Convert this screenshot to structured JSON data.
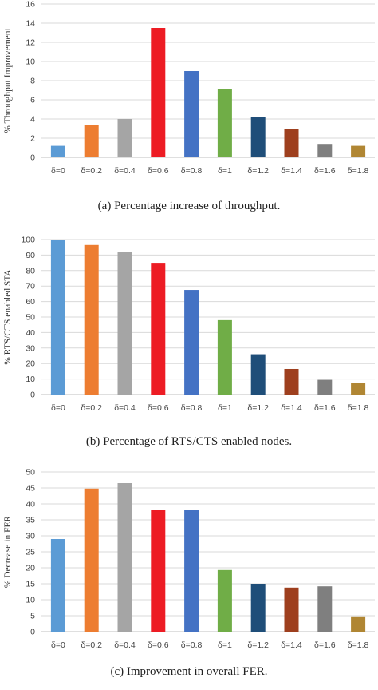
{
  "chart_data": [
    {
      "type": "bar",
      "id": "a",
      "categories": [
        "δ=0",
        "δ=0.2",
        "δ=0.4",
        "δ=0.6",
        "δ=0.8",
        "δ=1",
        "δ=1.2",
        "δ=1.4",
        "δ=1.6",
        "δ=1.8"
      ],
      "values": [
        1.2,
        3.4,
        4.0,
        13.5,
        9.0,
        7.1,
        4.2,
        3.0,
        1.4,
        1.2
      ],
      "ylabel": "% Throughput Improvement",
      "ylim": [
        0,
        16
      ],
      "yticks": [
        0,
        2,
        4,
        6,
        8,
        10,
        12,
        14,
        16
      ],
      "grid": true,
      "caption": "(a) Percentage increase of throughput."
    },
    {
      "type": "bar",
      "id": "b",
      "categories": [
        "δ=0",
        "δ=0.2",
        "δ=0.4",
        "δ=0.6",
        "δ=0.8",
        "δ=1",
        "δ=1.2",
        "δ=1.4",
        "δ=1.6",
        "δ=1.8"
      ],
      "values": [
        100,
        96.5,
        92,
        85,
        67.5,
        48,
        26,
        16.5,
        9.5,
        7.5
      ],
      "ylabel": "% RTS/CTS enabled STA",
      "ylim": [
        0,
        100
      ],
      "yticks": [
        0,
        10,
        20,
        30,
        40,
        50,
        60,
        70,
        80,
        90,
        100
      ],
      "grid": true,
      "caption": "(b) Percentage of RTS/CTS enabled nodes."
    },
    {
      "type": "bar",
      "id": "c",
      "categories": [
        "δ=0",
        "δ=0.2",
        "δ=0.4",
        "δ=0.6",
        "δ=0.8",
        "δ=1",
        "δ=1.2",
        "δ=1.4",
        "δ=1.6",
        "δ=1.8"
      ],
      "values": [
        29,
        44.8,
        46.5,
        38.2,
        38.2,
        19.3,
        15,
        13.8,
        14.2,
        4.8
      ],
      "ylabel": "% Decrease in FER",
      "ylim": [
        0,
        50
      ],
      "yticks": [
        0,
        5,
        10,
        15,
        20,
        25,
        30,
        35,
        40,
        45,
        50
      ],
      "grid": true,
      "caption": "(c) Improvement in overall FER."
    }
  ],
  "colors": [
    "#5b9bd5",
    "#ed7d31",
    "#a5a5a5",
    "#ed1c24",
    "#4472c4",
    "#70ad47",
    "#1f4e79",
    "#9e3f1e",
    "#7f7f7f",
    "#b08633"
  ]
}
